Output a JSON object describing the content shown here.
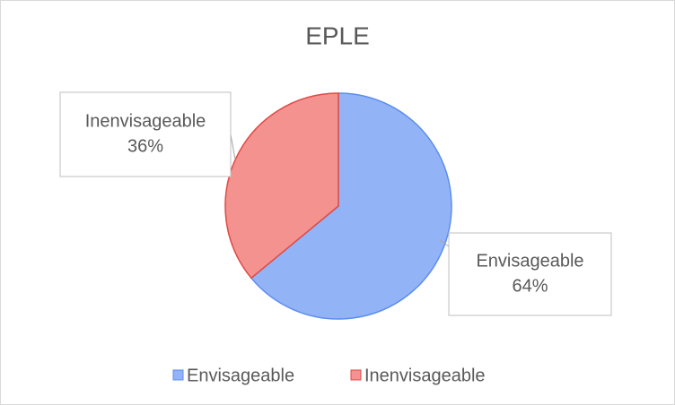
{
  "chart_data": {
    "type": "pie",
    "title": "EPLE",
    "categories": [
      "Envisageable",
      "Inenvisageable"
    ],
    "values": [
      64,
      36
    ],
    "value_labels": [
      "64%",
      "36%"
    ],
    "colors": [
      "#93b3f7",
      "#f3928e"
    ],
    "edge_colors": [
      "#5b8def",
      "#e04a45"
    ],
    "legend": "bottom"
  }
}
